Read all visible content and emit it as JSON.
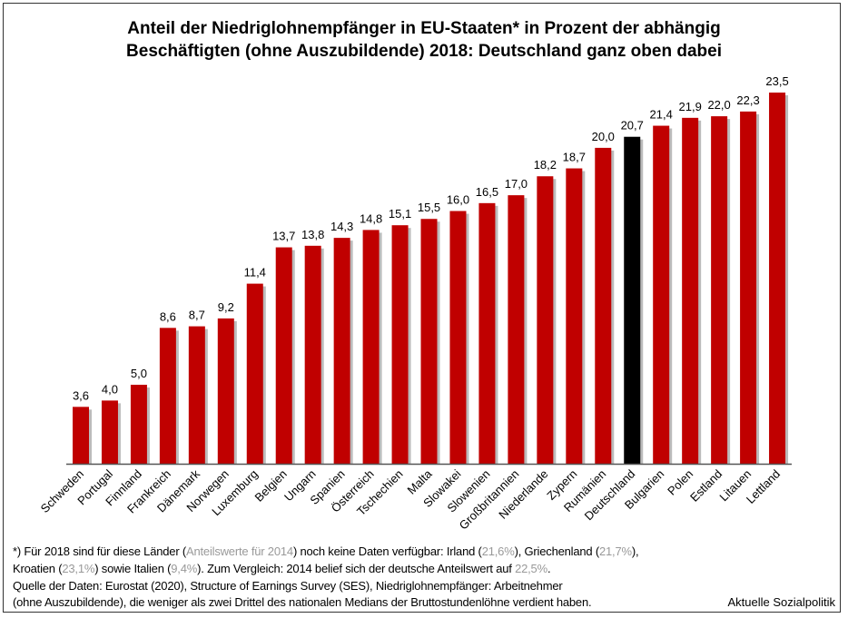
{
  "chart_data": {
    "type": "bar",
    "title_line1": "Anteil der Niedriglohnempfänger in EU-Staaten* in Prozent der abhängig",
    "title_line2": "Beschäftigten (ohne Auszubildende) 2018: Deutschland ganz oben dabei",
    "categories": [
      "Schweden",
      "Portugal",
      "Finnland",
      "Frankreich",
      "Dänemark",
      "Norwegen",
      "Luxemburg",
      "Belgien",
      "Ungarn",
      "Spanien",
      "Österreich",
      "Tschechien",
      "Malta",
      "Slowakei",
      "Slowenien",
      "Großbritannien",
      "Niederlande",
      "Zypern",
      "Rumänien",
      "Deutschland",
      "Bulgarien",
      "Polen",
      "Estland",
      "Litauen",
      "Lettland"
    ],
    "values": [
      3.6,
      4.0,
      5.0,
      8.6,
      8.7,
      9.2,
      11.4,
      13.7,
      13.8,
      14.3,
      14.8,
      15.1,
      15.5,
      16.0,
      16.5,
      17.0,
      18.2,
      18.7,
      20.0,
      20.7,
      21.4,
      21.9,
      22.0,
      22.3,
      23.5
    ],
    "data_labels": [
      "3,6",
      "4,0",
      "5,0",
      "8,6",
      "8,7",
      "9,2",
      "11,4",
      "13,7",
      "13,8",
      "14,3",
      "14,8",
      "15,1",
      "15,5",
      "16,0",
      "16,5",
      "17,0",
      "18,2",
      "18,7",
      "20,0",
      "20,7",
      "21,4",
      "21,9",
      "22,0",
      "22,3",
      "23,5"
    ],
    "highlight": "Deutschland",
    "ylim": [
      0,
      23.5
    ],
    "grid": false,
    "y_axis_shown": false,
    "colors": {
      "bar": "#c00000",
      "highlight": "#000000",
      "shadow": "#bbbbbb"
    }
  },
  "footnote": {
    "l1_a": "*) Für 2018 sind für diese Länder (",
    "l1_b": "Anteilswerte für 2014",
    "l1_c": ") noch keine Daten verfügbar: Irland (",
    "l1_d": "21,6%",
    "l1_e": "), Griechenland (",
    "l1_f": "21,7%",
    "l1_g": "),",
    "l2_a": "Kroatien (",
    "l2_b": "23,1%",
    "l2_c": ") sowie Italien (",
    "l2_d": "9,4%",
    "l2_e": "). Zum Vergleich: 2014 belief sich der deutsche Anteilswert auf ",
    "l2_f": "22,5%",
    "l2_g": ".",
    "l3": "Quelle der Daten: Eurostat (2020), Structure of Earnings Survey (SES), Niedriglohnempfänger: Arbeitnehmer",
    "l4": "(ohne Auszubildende), die weniger als zwei Drittel des nationalen Medians der Bruttostundenlöhne verdient haben.",
    "credit": "Aktuelle Sozialpolitik"
  }
}
